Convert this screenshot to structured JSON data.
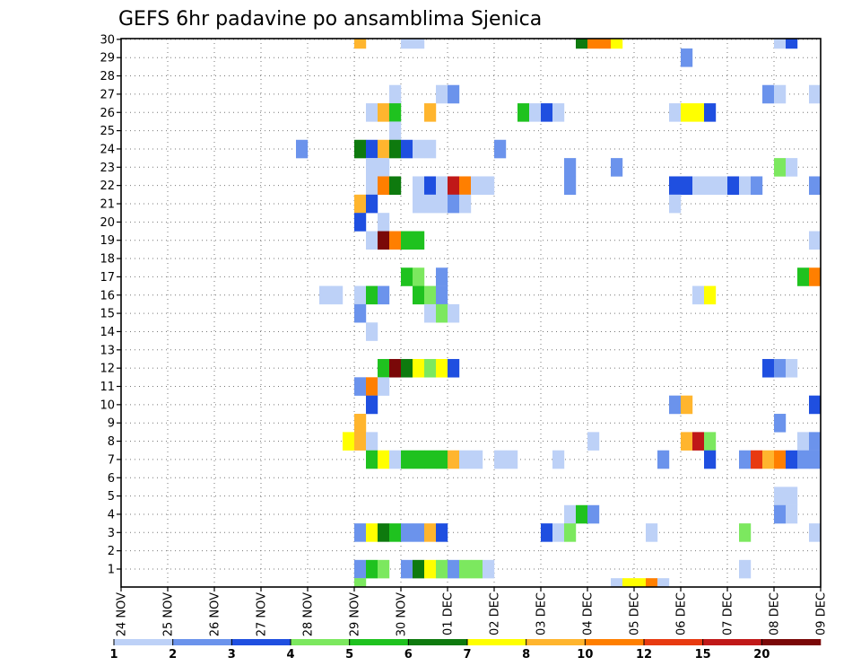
{
  "chart_data": {
    "type": "heatmap",
    "title": "GEFS 6hr padavine po ansamblima Sjenica",
    "xlabel": "",
    "ylabel": "",
    "x_tick_labels": [
      "24 NOV",
      "25 NOV",
      "26 NOV",
      "27 NOV",
      "28 NOV",
      "29 NOV",
      "30 NOV",
      "01 DEC",
      "02 DEC",
      "03 DEC",
      "04 DEC",
      "05 DEC",
      "06 DEC",
      "07 DEC",
      "08 DEC",
      "09 DEC"
    ],
    "y_tick_labels": [
      "1",
      "2",
      "3",
      "4",
      "5",
      "6",
      "7",
      "8",
      "9",
      "10",
      "11",
      "12",
      "13",
      "14",
      "15",
      "16",
      "17",
      "18",
      "19",
      "20",
      "21",
      "22",
      "23",
      "24",
      "25",
      "26",
      "27",
      "28",
      "29",
      "30"
    ],
    "step_hours": 6,
    "grid": true,
    "legend": {
      "placement": "bottom",
      "colors": [
        "#bdd1f7",
        "#6b93ec",
        "#1f4fe0",
        "#7ce85f",
        "#1fc21f",
        "#0e7a0e",
        "#ffff00",
        "#ffb52e",
        "#ff7f00",
        "#e83a10",
        "#c01818",
        "#7a0808"
      ],
      "labels": [
        "1",
        "2",
        "3",
        "4",
        "5",
        "6",
        "7",
        "8",
        "10",
        "12",
        "15",
        "20"
      ],
      "label_after_swatch": [
        0,
        1,
        2,
        3,
        4,
        5,
        6,
        7,
        8,
        9,
        10,
        11
      ]
    },
    "cells": [
      [
        30,
        20,
        7
      ],
      [
        30,
        24,
        0
      ],
      [
        30,
        25,
        0
      ],
      [
        30,
        39,
        5
      ],
      [
        30,
        40,
        8
      ],
      [
        30,
        41,
        8
      ],
      [
        30,
        42,
        6
      ],
      [
        30,
        56,
        0
      ],
      [
        30,
        57,
        2
      ],
      [
        29,
        48,
        1
      ],
      [
        27,
        23,
        0
      ],
      [
        27,
        27,
        0
      ],
      [
        27,
        28,
        1
      ],
      [
        27,
        55,
        1
      ],
      [
        27,
        56,
        0
      ],
      [
        27,
        59,
        0
      ],
      [
        26,
        21,
        0
      ],
      [
        26,
        22,
        7
      ],
      [
        26,
        23,
        4
      ],
      [
        26,
        26,
        7
      ],
      [
        26,
        34,
        4
      ],
      [
        26,
        35,
        0
      ],
      [
        26,
        36,
        2
      ],
      [
        26,
        37,
        0
      ],
      [
        26,
        47,
        0
      ],
      [
        26,
        48,
        6
      ],
      [
        26,
        49,
        6
      ],
      [
        26,
        50,
        2
      ],
      [
        25,
        23,
        0
      ],
      [
        24,
        15,
        1
      ],
      [
        24,
        20,
        5
      ],
      [
        24,
        21,
        2
      ],
      [
        24,
        22,
        7
      ],
      [
        24,
        23,
        5
      ],
      [
        24,
        24,
        2
      ],
      [
        24,
        25,
        0
      ],
      [
        24,
        26,
        0
      ],
      [
        24,
        32,
        1
      ],
      [
        23,
        21,
        0
      ],
      [
        23,
        22,
        0
      ],
      [
        23,
        38,
        1
      ],
      [
        23,
        42,
        1
      ],
      [
        23,
        56,
        3
      ],
      [
        23,
        57,
        0
      ],
      [
        22,
        21,
        0
      ],
      [
        22,
        22,
        8
      ],
      [
        22,
        23,
        5
      ],
      [
        22,
        25,
        0
      ],
      [
        22,
        26,
        2
      ],
      [
        22,
        27,
        0
      ],
      [
        22,
        28,
        10
      ],
      [
        22,
        29,
        8
      ],
      [
        22,
        30,
        0
      ],
      [
        22,
        31,
        0
      ],
      [
        22,
        38,
        1
      ],
      [
        22,
        47,
        2
      ],
      [
        22,
        48,
        2
      ],
      [
        22,
        49,
        0
      ],
      [
        22,
        50,
        0
      ],
      [
        22,
        51,
        0
      ],
      [
        22,
        52,
        2
      ],
      [
        22,
        53,
        0
      ],
      [
        22,
        54,
        1
      ],
      [
        22,
        59,
        1
      ],
      [
        21,
        20,
        7
      ],
      [
        21,
        21,
        2
      ],
      [
        21,
        25,
        0
      ],
      [
        21,
        26,
        0
      ],
      [
        21,
        27,
        0
      ],
      [
        21,
        28,
        1
      ],
      [
        21,
        29,
        0
      ],
      [
        21,
        47,
        0
      ],
      [
        20,
        20,
        2
      ],
      [
        20,
        22,
        0
      ],
      [
        19,
        21,
        0
      ],
      [
        19,
        22,
        11
      ],
      [
        19,
        23,
        8
      ],
      [
        19,
        24,
        4
      ],
      [
        19,
        25,
        4
      ],
      [
        19,
        59,
        0
      ],
      [
        17,
        24,
        4
      ],
      [
        17,
        25,
        3
      ],
      [
        17,
        27,
        1
      ],
      [
        17,
        58,
        4
      ],
      [
        17,
        59,
        8
      ],
      [
        16,
        17,
        0
      ],
      [
        16,
        18,
        0
      ],
      [
        16,
        20,
        0
      ],
      [
        16,
        21,
        4
      ],
      [
        16,
        22,
        1
      ],
      [
        16,
        25,
        4
      ],
      [
        16,
        26,
        3
      ],
      [
        16,
        27,
        1
      ],
      [
        16,
        49,
        0
      ],
      [
        16,
        50,
        6
      ],
      [
        15,
        20,
        1
      ],
      [
        15,
        26,
        0
      ],
      [
        15,
        27,
        3
      ],
      [
        15,
        28,
        0
      ],
      [
        14,
        21,
        0
      ],
      [
        12,
        22,
        4
      ],
      [
        12,
        23,
        11
      ],
      [
        12,
        24,
        5
      ],
      [
        12,
        25,
        6
      ],
      [
        12,
        26,
        3
      ],
      [
        12,
        27,
        6
      ],
      [
        12,
        28,
        2
      ],
      [
        12,
        55,
        2
      ],
      [
        12,
        56,
        1
      ],
      [
        12,
        57,
        0
      ],
      [
        11,
        20,
        1
      ],
      [
        11,
        21,
        8
      ],
      [
        11,
        22,
        0
      ],
      [
        10,
        21,
        2
      ],
      [
        10,
        47,
        1
      ],
      [
        10,
        48,
        7
      ],
      [
        10,
        59,
        2
      ],
      [
        9,
        20,
        7
      ],
      [
        9,
        56,
        1
      ],
      [
        8,
        19,
        6
      ],
      [
        8,
        20,
        7
      ],
      [
        8,
        21,
        0
      ],
      [
        8,
        40,
        0
      ],
      [
        8,
        48,
        7
      ],
      [
        8,
        49,
        10
      ],
      [
        8,
        50,
        3
      ],
      [
        8,
        58,
        0
      ],
      [
        8,
        59,
        1
      ],
      [
        7,
        21,
        4
      ],
      [
        7,
        22,
        6
      ],
      [
        7,
        23,
        0
      ],
      [
        7,
        24,
        4
      ],
      [
        7,
        25,
        4
      ],
      [
        7,
        26,
        4
      ],
      [
        7,
        27,
        4
      ],
      [
        7,
        28,
        7
      ],
      [
        7,
        29,
        0
      ],
      [
        7,
        30,
        0
      ],
      [
        7,
        32,
        0
      ],
      [
        7,
        33,
        0
      ],
      [
        7,
        37,
        0
      ],
      [
        7,
        46,
        1
      ],
      [
        7,
        50,
        2
      ],
      [
        7,
        53,
        1
      ],
      [
        7,
        54,
        9
      ],
      [
        7,
        55,
        7
      ],
      [
        7,
        56,
        8
      ],
      [
        7,
        57,
        2
      ],
      [
        7,
        58,
        1
      ],
      [
        7,
        59,
        1
      ],
      [
        5,
        56,
        0
      ],
      [
        5,
        57,
        0
      ],
      [
        4,
        38,
        0
      ],
      [
        4,
        39,
        4
      ],
      [
        4,
        40,
        1
      ],
      [
        4,
        56,
        1
      ],
      [
        4,
        57,
        0
      ],
      [
        3,
        20,
        1
      ],
      [
        3,
        21,
        6
      ],
      [
        3,
        22,
        5
      ],
      [
        3,
        23,
        4
      ],
      [
        3,
        24,
        1
      ],
      [
        3,
        25,
        1
      ],
      [
        3,
        26,
        7
      ],
      [
        3,
        27,
        2
      ],
      [
        3,
        36,
        2
      ],
      [
        3,
        37,
        0
      ],
      [
        3,
        38,
        3
      ],
      [
        3,
        45,
        0
      ],
      [
        3,
        53,
        3
      ],
      [
        3,
        59,
        0
      ],
      [
        1,
        20,
        1
      ],
      [
        1,
        21,
        4
      ],
      [
        1,
        22,
        3
      ],
      [
        1,
        24,
        1
      ],
      [
        1,
        25,
        5
      ],
      [
        1,
        26,
        6
      ],
      [
        1,
        27,
        3
      ],
      [
        1,
        28,
        1
      ],
      [
        1,
        29,
        3
      ],
      [
        1,
        30,
        3
      ],
      [
        1,
        31,
        0
      ],
      [
        1,
        53,
        0
      ],
      [
        0,
        20,
        3
      ],
      [
        0,
        42,
        0
      ],
      [
        0,
        43,
        6
      ],
      [
        0,
        44,
        6
      ],
      [
        0,
        45,
        8
      ],
      [
        0,
        46,
        0
      ]
    ]
  }
}
